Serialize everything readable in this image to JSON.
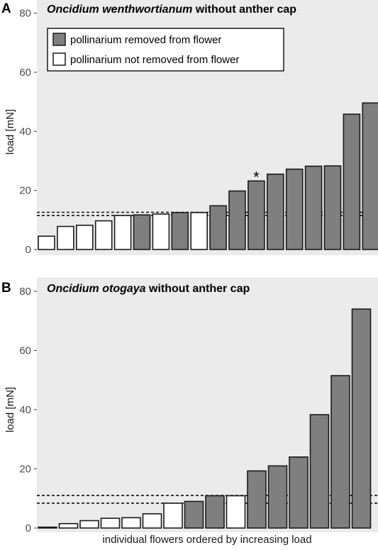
{
  "colors": {
    "panel_bg": "#ebebeb",
    "removed": "#7f7f7f",
    "not_removed": "#ffffff",
    "outline": "#1a1a1a"
  },
  "chart_data": [
    {
      "type": "bar",
      "panel_label": "A",
      "title_species": "Oncidium wenthwortianum",
      "title_rest": " without anther cap",
      "xlabel": "",
      "ylabel": "load [mN]",
      "ylim": [
        0,
        80
      ],
      "yticks": [
        "0",
        "20",
        "40",
        "60",
        "80"
      ],
      "grid": false,
      "legend": {
        "placement": "top-left",
        "removed": "pollinarium removed from flower",
        "not_removed": "pollinarium not removed from flower"
      },
      "values": [
        4.5,
        7.8,
        8.2,
        9.7,
        11.5,
        11.7,
        12.0,
        12.5,
        12.5,
        14.8,
        19.8,
        23.2,
        25.5,
        27.2,
        28.2,
        28.3,
        45.8,
        49.6
      ],
      "removed": [
        false,
        false,
        false,
        false,
        false,
        true,
        false,
        true,
        false,
        true,
        true,
        true,
        true,
        true,
        true,
        true,
        true,
        true
      ],
      "reference_lines": [
        11.5,
        12.6
      ],
      "annotations": [
        {
          "bar_index": 11,
          "text": "*"
        }
      ]
    },
    {
      "type": "bar",
      "panel_label": "B",
      "title_species": "Oncidium otogaya",
      "title_rest": " without anther cap",
      "xlabel": "individual flowers ordered by increasing load",
      "ylabel": "load [mN]",
      "ylim": [
        0,
        80
      ],
      "yticks": [
        "0",
        "20",
        "40",
        "60",
        "80"
      ],
      "grid": false,
      "values": [
        0.3,
        1.5,
        2.5,
        3.3,
        3.5,
        4.8,
        8.4,
        9.0,
        10.9,
        10.9,
        19.3,
        21.0,
        24.0,
        38.3,
        51.5,
        74.0
      ],
      "removed": [
        false,
        false,
        false,
        false,
        false,
        false,
        false,
        true,
        true,
        false,
        true,
        true,
        true,
        true,
        true,
        true
      ],
      "reference_lines": [
        8.4,
        11.0
      ]
    }
  ]
}
